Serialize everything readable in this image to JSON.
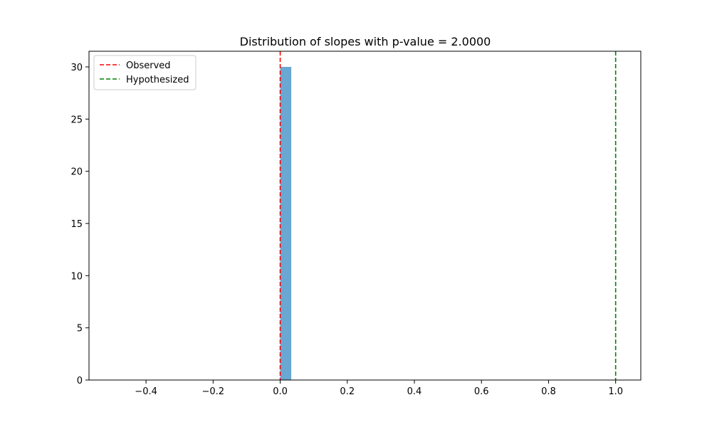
{
  "chart_data": {
    "type": "bar",
    "title": "Distribution of slopes with p-value = 2.0000",
    "xlabel": "",
    "ylabel": "",
    "xlim": [
      -0.57,
      1.075
    ],
    "ylim": [
      0,
      31.5
    ],
    "x_ticks": [
      -0.4,
      -0.2,
      0.0,
      0.2,
      0.4,
      0.6,
      0.8,
      1.0
    ],
    "x_tick_labels": [
      "−0.4",
      "−0.2",
      "0.0",
      "0.2",
      "0.4",
      "0.6",
      "0.8",
      "1.0"
    ],
    "y_ticks": [
      0,
      5,
      10,
      15,
      20,
      25,
      30
    ],
    "y_tick_labels": [
      "0",
      "5",
      "10",
      "15",
      "20",
      "25",
      "30"
    ],
    "bars": [
      {
        "x_start": 0.0,
        "x_end": 0.033,
        "count": 30
      }
    ],
    "bar_color": "#6aa7d2",
    "vlines": [
      {
        "name": "Observed",
        "x": 0.0,
        "color": "#ff0000",
        "style": "dashed"
      },
      {
        "name": "Hypothesized",
        "x": 1.0,
        "color": "#008000",
        "style": "dashed"
      }
    ],
    "legend": {
      "position": "top-left",
      "entries": [
        "Observed",
        "Hypothesized"
      ]
    },
    "grid": false
  }
}
